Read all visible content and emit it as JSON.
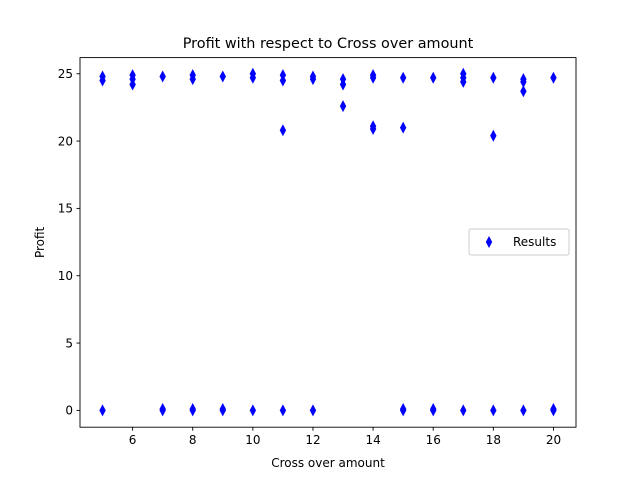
{
  "chart_data": {
    "type": "scatter",
    "title": "Profit with respect to Cross over amount",
    "xlabel": "Cross over amount",
    "ylabel": "Profit",
    "xlim": [
      4.25,
      20.75
    ],
    "ylim": [
      -1.25,
      26.2
    ],
    "xticks": [
      6,
      8,
      10,
      12,
      14,
      16,
      18,
      20
    ],
    "yticks": [
      0,
      5,
      10,
      15,
      20,
      25
    ],
    "grid": false,
    "legend_position": "center-right",
    "marker": "thin-diamond",
    "color": "#0000ff",
    "series": [
      {
        "name": "Results",
        "points": [
          {
            "x": 5,
            "y": 24.8
          },
          {
            "x": 5,
            "y": 24.5
          },
          {
            "x": 5,
            "y": 0
          },
          {
            "x": 6,
            "y": 24.9
          },
          {
            "x": 6,
            "y": 24.6
          },
          {
            "x": 6,
            "y": 24.2
          },
          {
            "x": 7,
            "y": 24.8
          },
          {
            "x": 7,
            "y": 0.1
          },
          {
            "x": 7,
            "y": 0
          },
          {
            "x": 8,
            "y": 24.9
          },
          {
            "x": 8,
            "y": 24.6
          },
          {
            "x": 8,
            "y": 0.1
          },
          {
            "x": 8,
            "y": 0
          },
          {
            "x": 9,
            "y": 24.8
          },
          {
            "x": 9,
            "y": 0.1
          },
          {
            "x": 9,
            "y": 0
          },
          {
            "x": 10,
            "y": 25.0
          },
          {
            "x": 10,
            "y": 24.7
          },
          {
            "x": 10,
            "y": 0
          },
          {
            "x": 11,
            "y": 24.9
          },
          {
            "x": 11,
            "y": 24.5
          },
          {
            "x": 11,
            "y": 20.8
          },
          {
            "x": 11,
            "y": 0
          },
          {
            "x": 12,
            "y": 24.8
          },
          {
            "x": 12,
            "y": 24.6
          },
          {
            "x": 12,
            "y": 0
          },
          {
            "x": 13,
            "y": 24.6
          },
          {
            "x": 13,
            "y": 24.2
          },
          {
            "x": 13,
            "y": 22.6
          },
          {
            "x": 14,
            "y": 24.9
          },
          {
            "x": 14,
            "y": 24.7
          },
          {
            "x": 14,
            "y": 21.1
          },
          {
            "x": 14,
            "y": 20.9
          },
          {
            "x": 15,
            "y": 24.7
          },
          {
            "x": 15,
            "y": 21.0
          },
          {
            "x": 15,
            "y": 0.1
          },
          {
            "x": 15,
            "y": 0
          },
          {
            "x": 16,
            "y": 24.7
          },
          {
            "x": 16,
            "y": 0.1
          },
          {
            "x": 16,
            "y": 0
          },
          {
            "x": 17,
            "y": 25.0
          },
          {
            "x": 17,
            "y": 24.7
          },
          {
            "x": 17,
            "y": 24.4
          },
          {
            "x": 17,
            "y": 0
          },
          {
            "x": 18,
            "y": 24.7
          },
          {
            "x": 18,
            "y": 20.4
          },
          {
            "x": 18,
            "y": 0
          },
          {
            "x": 19,
            "y": 24.6
          },
          {
            "x": 19,
            "y": 24.4
          },
          {
            "x": 19,
            "y": 23.7
          },
          {
            "x": 19,
            "y": 0
          },
          {
            "x": 20,
            "y": 24.7
          },
          {
            "x": 20,
            "y": 0.1
          },
          {
            "x": 20,
            "y": 0
          }
        ]
      }
    ]
  }
}
